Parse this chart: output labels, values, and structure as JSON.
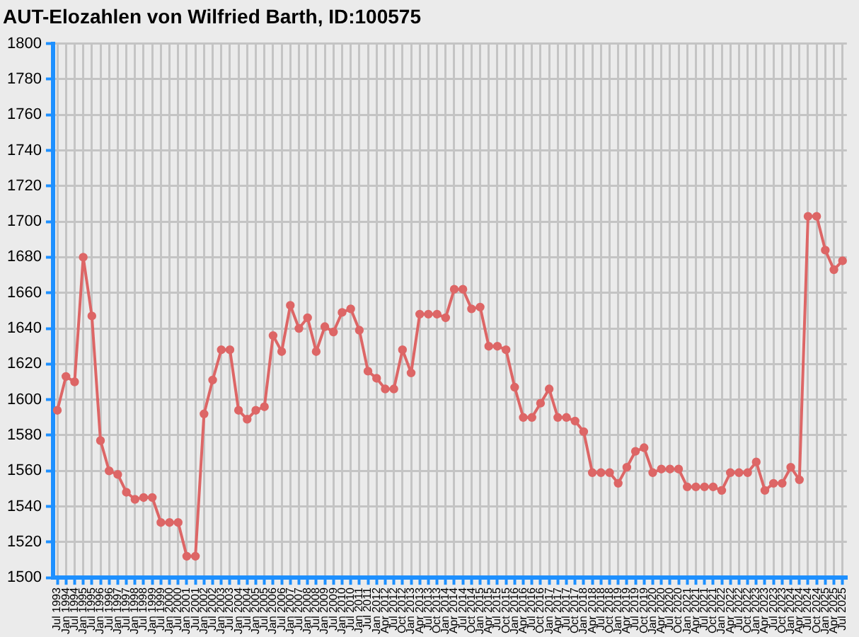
{
  "chart_data": {
    "type": "line",
    "title": "AUT-Elozahlen von Wilfried Barth, ID:100575",
    "categories": [
      "Jul 1993",
      "Jan 1994",
      "Jul 1994",
      "Jan 1995",
      "Jul 1995",
      "Jan 1996",
      "Jul 1996",
      "Jan 1997",
      "Jul 1997",
      "Jan 1998",
      "Jul 1998",
      "Jan 1999",
      "Jul 1999",
      "Jan 2000",
      "Jul 2000",
      "Jan 2001",
      "Jul 2001",
      "Jan 2002",
      "Jul 2002",
      "Jan 2003",
      "Jul 2003",
      "Jan 2004",
      "Jul 2004",
      "Jan 2005",
      "Jul 2005",
      "Jan 2006",
      "Jul 2006",
      "Jan 2007",
      "Jul 2007",
      "Jan 2008",
      "Jul 2008",
      "Jan 2009",
      "Jul 2009",
      "Jan 2010",
      "Jul 2010",
      "Jan 2011",
      "Jul 2011",
      "Jan 2012",
      "Apr 2012",
      "Jul 2012",
      "Oct 2012",
      "Jan 2013",
      "Apr 2013",
      "Jul 2013",
      "Oct 2013",
      "Jan 2014",
      "Apr 2014",
      "Jul 2014",
      "Oct 2014",
      "Jan 2015",
      "Apr 2015",
      "Jul 2015",
      "Oct 2015",
      "Jan 2016",
      "Apr 2016",
      "Jul 2016",
      "Oct 2016",
      "Jan 2017",
      "Apr 2017",
      "Jul 2017",
      "Oct 2017",
      "Jan 2018",
      "Apr 2018",
      "Jul 2018",
      "Oct 2018",
      "Jan 2019",
      "Apr 2019",
      "Jul 2019",
      "Oct 2019",
      "Jan 2020",
      "Apr 2020",
      "Jul 2020",
      "Oct 2020",
      "Jan 2021",
      "Apr 2021",
      "Jul 2021",
      "Oct 2021",
      "Jan 2022",
      "Apr 2022",
      "Jul 2022",
      "Oct 2022",
      "Jan 2023",
      "Apr 2023",
      "Jul 2023",
      "Oct 2023",
      "Jan 2024",
      "Apr 2024",
      "Jul 2024",
      "Oct 2024",
      "Jan 2025",
      "Apr 2025",
      "Jul 2025"
    ],
    "series": [
      {
        "color": "#dd6666",
        "values": [
          1594,
          1613,
          1610,
          1680,
          1647,
          1577,
          1560,
          1558,
          1548,
          1544,
          1545,
          1545,
          1531,
          1531,
          1531,
          1512,
          1512,
          1592,
          1611,
          1628,
          1628,
          1594,
          1589,
          1594,
          1596,
          1636,
          1627,
          1653,
          1640,
          1646,
          1627,
          1641,
          1638,
          1649,
          1651,
          1639,
          1616,
          1612,
          1606,
          1606,
          1628,
          1615,
          1648,
          1648,
          1648,
          1646,
          1662,
          1662,
          1651,
          1652,
          1630,
          1630,
          1628,
          1607,
          1590,
          1590,
          1598,
          1606,
          1590,
          1590,
          1588,
          1582,
          1559,
          1559,
          1559,
          1553,
          1562,
          1571,
          1573,
          1559,
          1561,
          1561,
          1561,
          1551,
          1551,
          1551,
          1551,
          1549,
          1559,
          1559,
          1559,
          1565,
          1549,
          1553,
          1553,
          1562,
          1555,
          1703,
          1703,
          1684,
          1673,
          1678
        ]
      }
    ],
    "ylim": [
      1500,
      1800
    ],
    "yticks": [
      1500,
      1520,
      1540,
      1560,
      1580,
      1600,
      1620,
      1640,
      1660,
      1680,
      1700,
      1720,
      1740,
      1760,
      1780,
      1800
    ],
    "grid": true,
    "marker": "circle"
  }
}
